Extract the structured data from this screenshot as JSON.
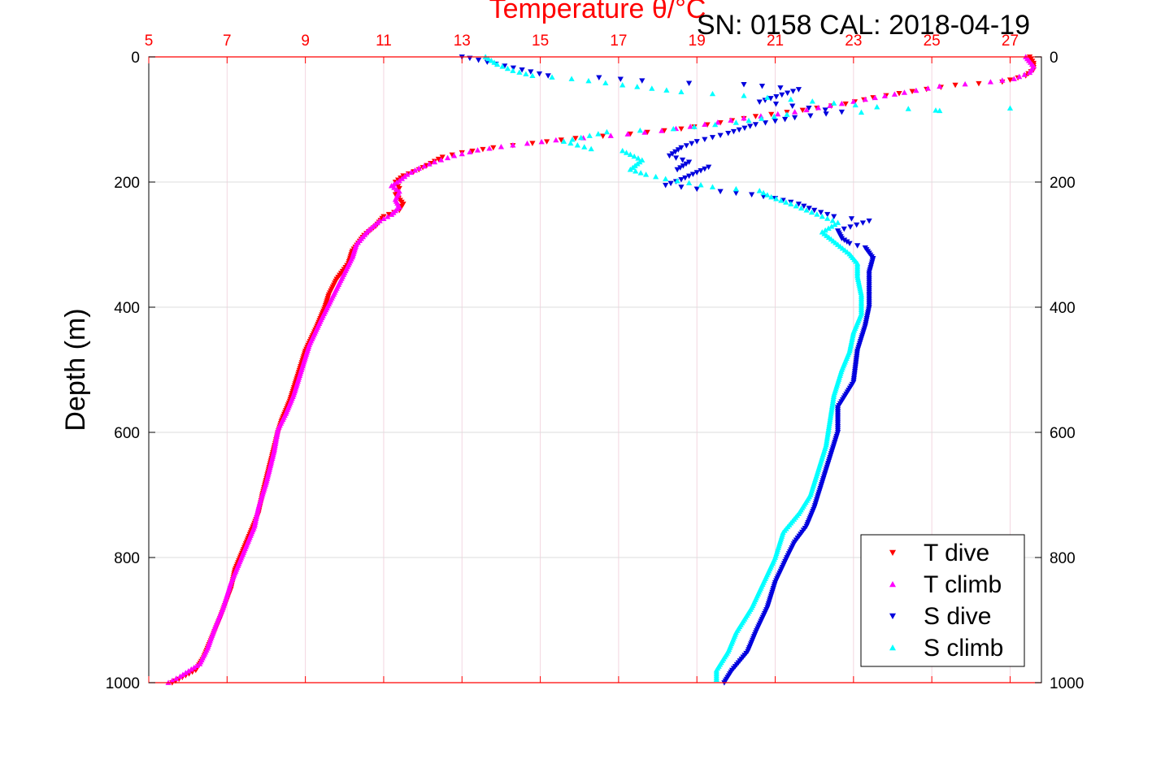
{
  "header": {
    "serial_text": "SN: 0158  CAL: 2018-04-19"
  },
  "chart_data": {
    "type": "scatter",
    "title": "Temperature θ/°C",
    "top_xlabel": "Temperature θ/°C",
    "ylabel": "Depth (m)",
    "xlim": [
      5,
      27.8
    ],
    "ylim": [
      1000,
      0
    ],
    "y_reversed": true,
    "x_ticks": [
      5,
      7,
      9,
      11,
      13,
      15,
      17,
      19,
      21,
      23,
      25,
      27
    ],
    "y_ticks": [
      0,
      200,
      400,
      600,
      800,
      1000
    ],
    "grid": true,
    "legend_position": "bottom-right",
    "colors": {
      "t_dive": "#ff0000",
      "t_climb": "#ff00ff",
      "s_dive": "#0000dd",
      "s_climb": "#00ffff",
      "top_axis": "#ff0000",
      "grid": "#dddddd"
    },
    "series": [
      {
        "name": "T dive",
        "marker": "triangle-down",
        "color": "#ff0000",
        "points": [
          [
            27.5,
            0
          ],
          [
            27.6,
            10
          ],
          [
            27.6,
            20
          ],
          [
            27.4,
            30
          ],
          [
            26.8,
            40
          ],
          [
            25.6,
            45
          ],
          [
            24.5,
            55
          ],
          [
            23.5,
            65
          ],
          [
            22.8,
            75
          ],
          [
            21.7,
            85
          ],
          [
            20.5,
            95
          ],
          [
            19.6,
            105
          ],
          [
            18.6,
            115
          ],
          [
            17.3,
            123
          ],
          [
            15.9,
            130
          ],
          [
            14.8,
            138
          ],
          [
            13.8,
            145
          ],
          [
            13.0,
            153
          ],
          [
            12.5,
            160
          ],
          [
            12.2,
            170
          ],
          [
            11.9,
            180
          ],
          [
            11.5,
            190
          ],
          [
            11.3,
            200
          ],
          [
            11.4,
            210
          ],
          [
            11.3,
            220
          ],
          [
            11.5,
            235
          ],
          [
            11.4,
            245
          ],
          [
            11.0,
            255
          ],
          [
            10.8,
            270
          ],
          [
            10.5,
            285
          ],
          [
            10.2,
            310
          ],
          [
            10.1,
            330
          ],
          [
            9.8,
            355
          ],
          [
            9.6,
            380
          ],
          [
            9.5,
            400
          ],
          [
            9.3,
            430
          ],
          [
            9.0,
            470
          ],
          [
            8.8,
            510
          ],
          [
            8.6,
            550
          ],
          [
            8.4,
            580
          ],
          [
            8.3,
            600
          ],
          [
            8.1,
            650
          ],
          [
            7.9,
            700
          ],
          [
            7.8,
            730
          ],
          [
            7.6,
            760
          ],
          [
            7.4,
            790
          ],
          [
            7.2,
            820
          ],
          [
            7.1,
            850
          ],
          [
            6.8,
            900
          ],
          [
            6.6,
            930
          ],
          [
            6.4,
            960
          ],
          [
            6.2,
            980
          ],
          [
            5.6,
            1000
          ]
        ]
      },
      {
        "name": "T climb",
        "marker": "triangle-up",
        "color": "#ff00ff",
        "points": [
          [
            27.4,
            0
          ],
          [
            27.6,
            15
          ],
          [
            27.5,
            25
          ],
          [
            27.1,
            35
          ],
          [
            26.5,
            40
          ],
          [
            25.2,
            47
          ],
          [
            24.3,
            57
          ],
          [
            23.3,
            68
          ],
          [
            22.4,
            78
          ],
          [
            21.5,
            88
          ],
          [
            20.2,
            98
          ],
          [
            19.2,
            108
          ],
          [
            18.1,
            118
          ],
          [
            16.8,
            126
          ],
          [
            15.4,
            133
          ],
          [
            14.3,
            141
          ],
          [
            13.4,
            149
          ],
          [
            12.8,
            158
          ],
          [
            12.3,
            168
          ],
          [
            11.9,
            178
          ],
          [
            11.6,
            188
          ],
          [
            11.4,
            198
          ],
          [
            11.2,
            206
          ],
          [
            11.4,
            215
          ],
          [
            11.3,
            228
          ],
          [
            11.4,
            240
          ],
          [
            11.2,
            252
          ],
          [
            10.9,
            262
          ],
          [
            10.6,
            278
          ],
          [
            10.3,
            300
          ],
          [
            10.2,
            320
          ],
          [
            10.0,
            345
          ],
          [
            9.8,
            370
          ],
          [
            9.6,
            395
          ],
          [
            9.4,
            420
          ],
          [
            9.1,
            460
          ],
          [
            8.9,
            500
          ],
          [
            8.7,
            540
          ],
          [
            8.5,
            570
          ],
          [
            8.3,
            595
          ],
          [
            8.2,
            630
          ],
          [
            8.0,
            680
          ],
          [
            7.8,
            720
          ],
          [
            7.7,
            750
          ],
          [
            7.5,
            780
          ],
          [
            7.3,
            810
          ],
          [
            7.1,
            840
          ],
          [
            6.9,
            880
          ],
          [
            6.7,
            910
          ],
          [
            6.5,
            945
          ],
          [
            6.3,
            970
          ],
          [
            5.8,
            990
          ],
          [
            5.5,
            1000
          ]
        ]
      },
      {
        "name": "S dive",
        "marker": "triangle-down",
        "color": "#0000dd",
        "points": [
          [
            13.0,
            0
          ],
          [
            13.2,
            2
          ],
          [
            15.2,
            30
          ],
          [
            16.5,
            33
          ],
          [
            17.6,
            38
          ],
          [
            18.8,
            42
          ],
          [
            20.2,
            44
          ],
          [
            21.6,
            52
          ],
          [
            20.6,
            72
          ],
          [
            22.7,
            88
          ],
          [
            21.5,
            97
          ],
          [
            20.5,
            108
          ],
          [
            19.8,
            122
          ],
          [
            19.0,
            135
          ],
          [
            18.6,
            145
          ],
          [
            18.3,
            158
          ],
          [
            18.8,
            168
          ],
          [
            18.5,
            180
          ],
          [
            19.3,
            176
          ],
          [
            18.6,
            196
          ],
          [
            18.2,
            205
          ],
          [
            19.0,
            211
          ],
          [
            19.6,
            215
          ],
          [
            20.4,
            220
          ],
          [
            21.0,
            226
          ],
          [
            21.6,
            235
          ],
          [
            22.0,
            245
          ],
          [
            22.5,
            255
          ],
          [
            23.4,
            262
          ],
          [
            22.6,
            278
          ],
          [
            22.7,
            290
          ],
          [
            22.9,
            298
          ],
          [
            23.3,
            305
          ],
          [
            23.5,
            322
          ],
          [
            23.4,
            345
          ],
          [
            23.4,
            370
          ],
          [
            23.4,
            400
          ],
          [
            23.3,
            430
          ],
          [
            23.1,
            470
          ],
          [
            23.0,
            520
          ],
          [
            22.6,
            560
          ],
          [
            22.6,
            600
          ],
          [
            22.4,
            640
          ],
          [
            22.2,
            680
          ],
          [
            22.0,
            720
          ],
          [
            21.8,
            750
          ],
          [
            21.5,
            775
          ],
          [
            21.3,
            800
          ],
          [
            21.0,
            840
          ],
          [
            20.8,
            880
          ],
          [
            20.5,
            920
          ],
          [
            20.3,
            950
          ],
          [
            19.9,
            980
          ],
          [
            19.7,
            1000
          ]
        ]
      },
      {
        "name": "S climb",
        "marker": "triangle-up",
        "color": "#00ffff",
        "points": [
          [
            13.6,
            0
          ],
          [
            13.9,
            12
          ],
          [
            14.3,
            22
          ],
          [
            14.8,
            30
          ],
          [
            15.8,
            35
          ],
          [
            17.1,
            45
          ],
          [
            18.6,
            56
          ],
          [
            20.2,
            62
          ],
          [
            21.4,
            68
          ],
          [
            23.6,
            80
          ],
          [
            25.2,
            86
          ],
          [
            27.0,
            82
          ],
          [
            21.3,
            92
          ],
          [
            20.0,
            105
          ],
          [
            18.4,
            115
          ],
          [
            16.7,
            120
          ],
          [
            15.6,
            135
          ],
          [
            16.3,
            147
          ],
          [
            17.1,
            150
          ],
          [
            17.6,
            165
          ],
          [
            17.3,
            180
          ],
          [
            17.7,
            188
          ],
          [
            18.2,
            195
          ],
          [
            19.4,
            208
          ],
          [
            20.6,
            214
          ],
          [
            20.9,
            224
          ],
          [
            21.4,
            235
          ],
          [
            21.8,
            245
          ],
          [
            22.2,
            255
          ],
          [
            22.6,
            265
          ],
          [
            22.2,
            280
          ],
          [
            22.6,
            300
          ],
          [
            22.9,
            315
          ],
          [
            23.1,
            330
          ],
          [
            23.1,
            350
          ],
          [
            23.2,
            380
          ],
          [
            23.2,
            410
          ],
          [
            23.0,
            440
          ],
          [
            22.9,
            470
          ],
          [
            22.7,
            500
          ],
          [
            22.5,
            540
          ],
          [
            22.4,
            580
          ],
          [
            22.3,
            620
          ],
          [
            22.1,
            660
          ],
          [
            21.9,
            700
          ],
          [
            21.6,
            730
          ],
          [
            21.2,
            760
          ],
          [
            21.0,
            800
          ],
          [
            20.7,
            840
          ],
          [
            20.4,
            880
          ],
          [
            20.0,
            920
          ],
          [
            19.8,
            950
          ],
          [
            19.5,
            980
          ],
          [
            19.5,
            995
          ]
        ]
      }
    ]
  }
}
